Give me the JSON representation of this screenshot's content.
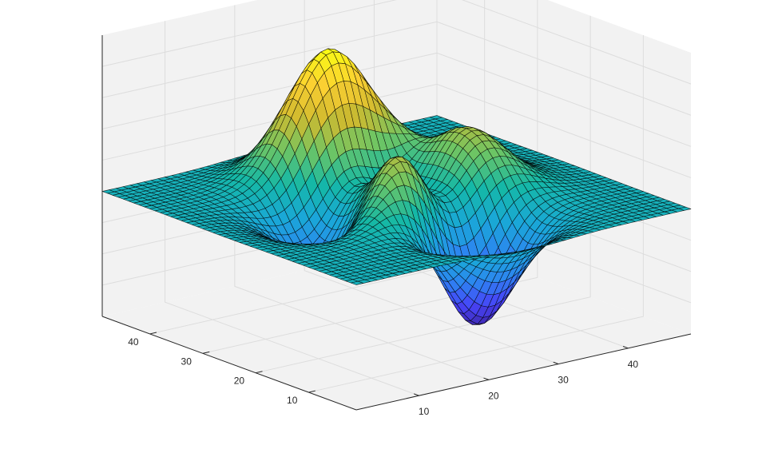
{
  "chart_data": {
    "type": "surface",
    "function": "peaks",
    "grid_size": 49,
    "title": "",
    "xlabel": "",
    "ylabel": "",
    "zlabel": "",
    "xlim": [
      1,
      49
    ],
    "ylim": [
      1,
      49
    ],
    "zlim": [
      -8,
      10
    ],
    "x_ticks": [
      10,
      20,
      30,
      40
    ],
    "y_ticks": [
      10,
      20,
      30,
      40
    ],
    "x_tick_labels": [
      "10",
      "20",
      "30",
      "40"
    ],
    "y_tick_labels": [
      "10",
      "20",
      "30",
      "40"
    ],
    "z_tick_labels": [],
    "view": {
      "azimuth_deg": -37.5,
      "elevation_deg": 30
    },
    "colormap": "parula",
    "colormap_stops": [
      "#3e26a8",
      "#4743f8",
      "#2d85f1",
      "#1aa7d8",
      "#15b8a6",
      "#6fc563",
      "#d0ba2f",
      "#fbcf32",
      "#f9fb15"
    ],
    "edge_color": "#000000",
    "grid": true,
    "box": false,
    "axes_background": "#f2f2f2",
    "grid_color": "#dddddd",
    "axis_color": "#262626"
  }
}
